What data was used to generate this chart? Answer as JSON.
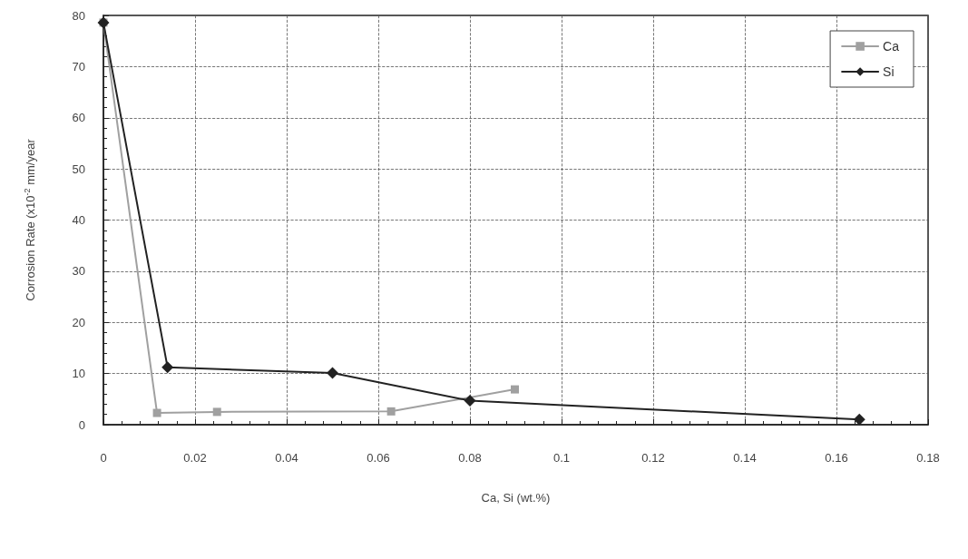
{
  "chart_data": {
    "type": "line",
    "xlabel": "Ca, Si (wt.%)",
    "ylabel": "Corrosion Rate (x10$^{-2}$ mm/year",
    "series": [
      {
        "name": "Ca",
        "color": "#a0a0a0",
        "marker": "square",
        "x": [
          0,
          0.0117,
          0.0248,
          0.0628,
          0.0898
        ],
        "values": [
          78.6,
          2.3,
          2.5,
          2.6,
          6.9
        ]
      },
      {
        "name": "Si",
        "color": "#222222",
        "marker": "diamond",
        "x": [
          0,
          0.014,
          0.05,
          0.08,
          0.165
        ],
        "values": [
          78.6,
          11.2,
          10.1,
          4.7,
          1.0
        ]
      }
    ],
    "xlim": [
      0,
      0.18
    ],
    "xticks": [
      0,
      0.02,
      0.04,
      0.06,
      0.08,
      0.1,
      0.12,
      0.14,
      0.16,
      0.18
    ],
    "ylim": [
      0,
      80
    ],
    "yticks": [
      0,
      10,
      20,
      30,
      40,
      50,
      60,
      70,
      80
    ],
    "grid": true,
    "legend": "top right",
    "line_style": "solid"
  }
}
